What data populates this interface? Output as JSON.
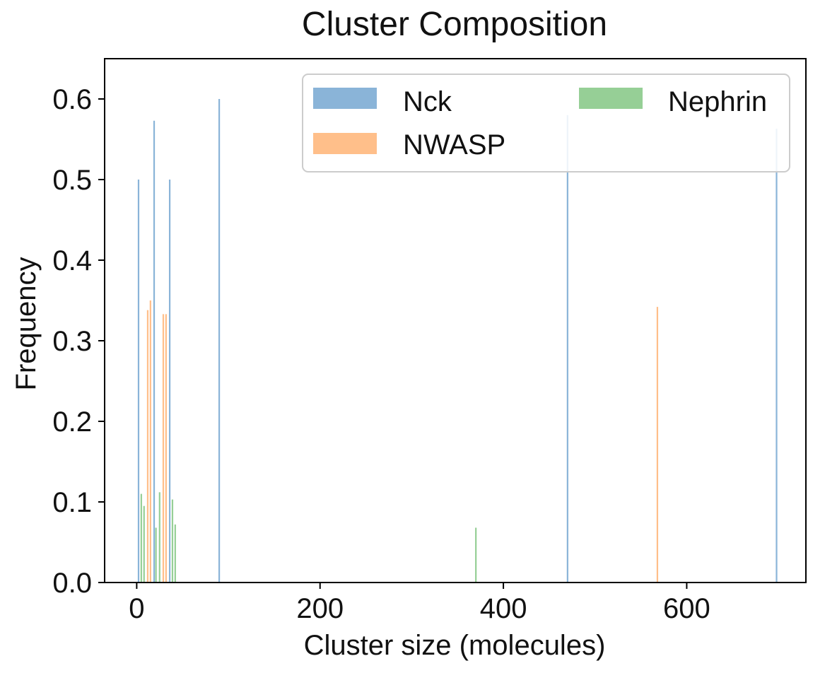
{
  "chart_data": {
    "type": "bar",
    "title": "Cluster Composition",
    "xlabel": "Cluster size (molecules)",
    "ylabel": "Frequency",
    "xlim": [
      -35,
      730
    ],
    "ylim": [
      0,
      0.65
    ],
    "xticks": [
      0,
      200,
      400,
      600
    ],
    "xtick_labels": [
      "0",
      "200",
      "400",
      "600"
    ],
    "yticks": [
      0.0,
      0.1,
      0.2,
      0.3,
      0.4,
      0.5,
      0.6
    ],
    "ytick_labels": [
      "0.0",
      "0.1",
      "0.2",
      "0.3",
      "0.4",
      "0.5",
      "0.6"
    ],
    "grid": false,
    "legend_position": "top-right",
    "series": [
      {
        "name": "Nck",
        "color": "#8ab4d8",
        "points": [
          {
            "x": 2,
            "y": 0.5
          },
          {
            "x": 19,
            "y": 0.573
          },
          {
            "x": 36,
            "y": 0.5
          },
          {
            "x": 90,
            "y": 0.6
          },
          {
            "x": 470,
            "y": 0.58
          },
          {
            "x": 698,
            "y": 0.563
          }
        ]
      },
      {
        "name": "NWASP",
        "color": "#ffbf8a",
        "points": [
          {
            "x": 12,
            "y": 0.338
          },
          {
            "x": 15,
            "y": 0.35
          },
          {
            "x": 29,
            "y": 0.333
          },
          {
            "x": 32,
            "y": 0.333
          },
          {
            "x": 568,
            "y": 0.342
          }
        ]
      },
      {
        "name": "Nephrin",
        "color": "#96cf96",
        "points": [
          {
            "x": 5,
            "y": 0.11
          },
          {
            "x": 8,
            "y": 0.095
          },
          {
            "x": 21,
            "y": 0.068
          },
          {
            "x": 25,
            "y": 0.112
          },
          {
            "x": 39,
            "y": 0.103
          },
          {
            "x": 42,
            "y": 0.072
          },
          {
            "x": 370,
            "y": 0.068
          }
        ]
      }
    ]
  }
}
